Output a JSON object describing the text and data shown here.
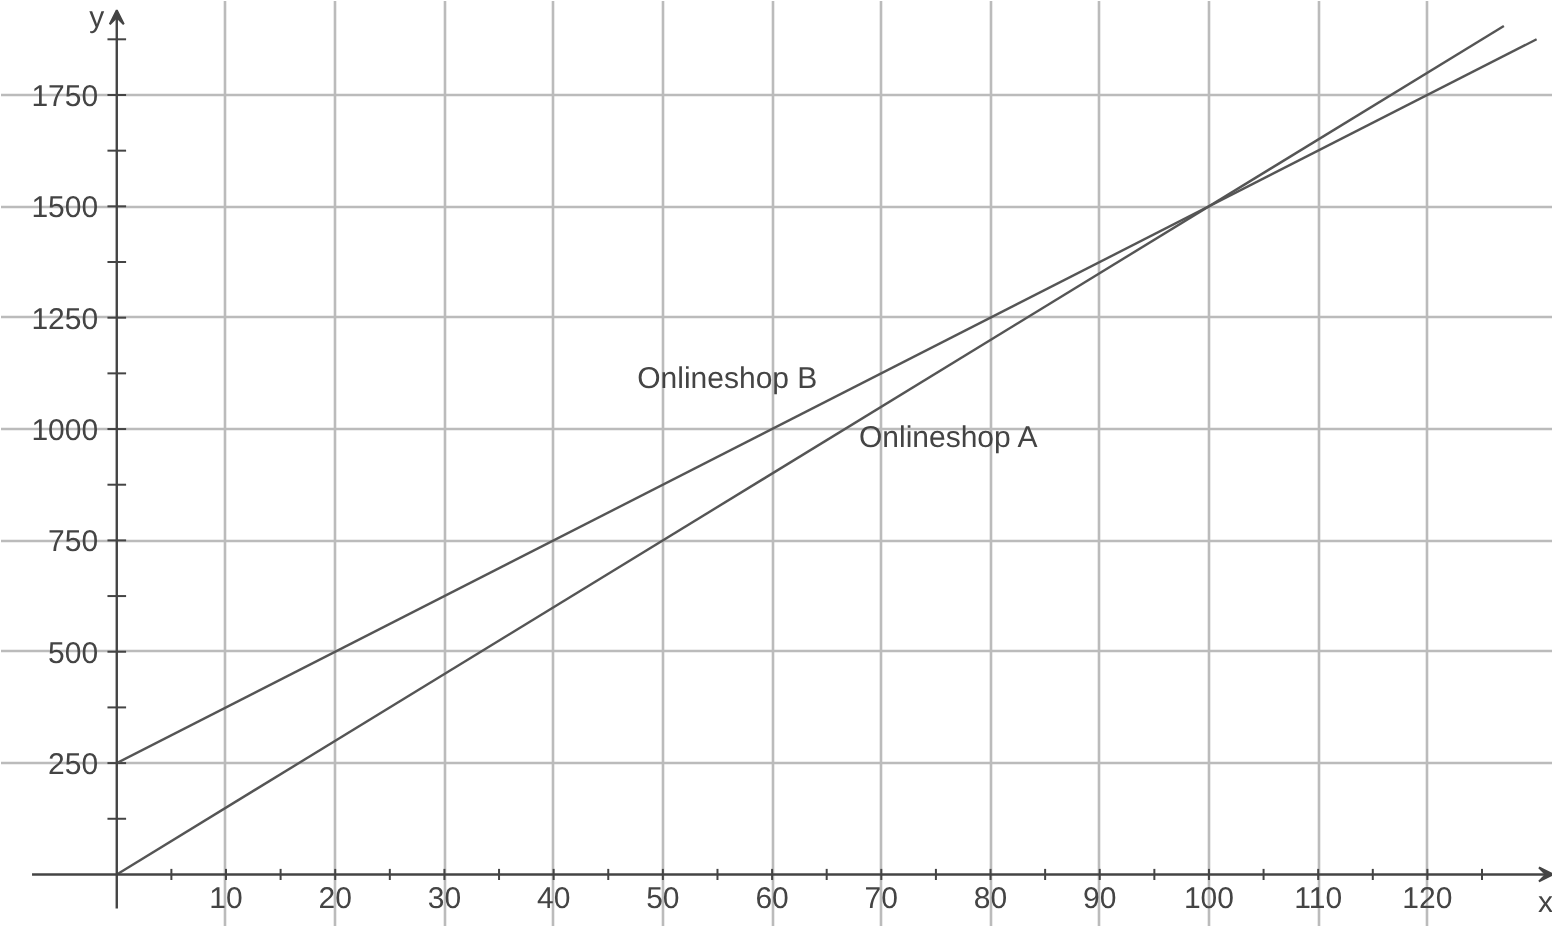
{
  "chart_data": {
    "type": "line",
    "xlabel": "x",
    "ylabel": "y",
    "xlim": [
      -10.6,
      131.5
    ],
    "ylim": [
      -118,
      1961
    ],
    "xticks": [
      10,
      20,
      30,
      40,
      50,
      60,
      70,
      80,
      90,
      100,
      110,
      120
    ],
    "yticks": [
      250,
      500,
      750,
      1000,
      1250,
      1500,
      1750
    ],
    "grid": true,
    "marker": "none",
    "line_style": "solid",
    "series": [
      {
        "name": "Onlineshop A",
        "color": "#555555",
        "x": [
          0,
          127
        ],
        "values": [
          0,
          1905
        ]
      },
      {
        "name": "Onlineshop B",
        "color": "#555555",
        "x": [
          0,
          130
        ],
        "values": [
          250,
          1875
        ]
      }
    ]
  }
}
